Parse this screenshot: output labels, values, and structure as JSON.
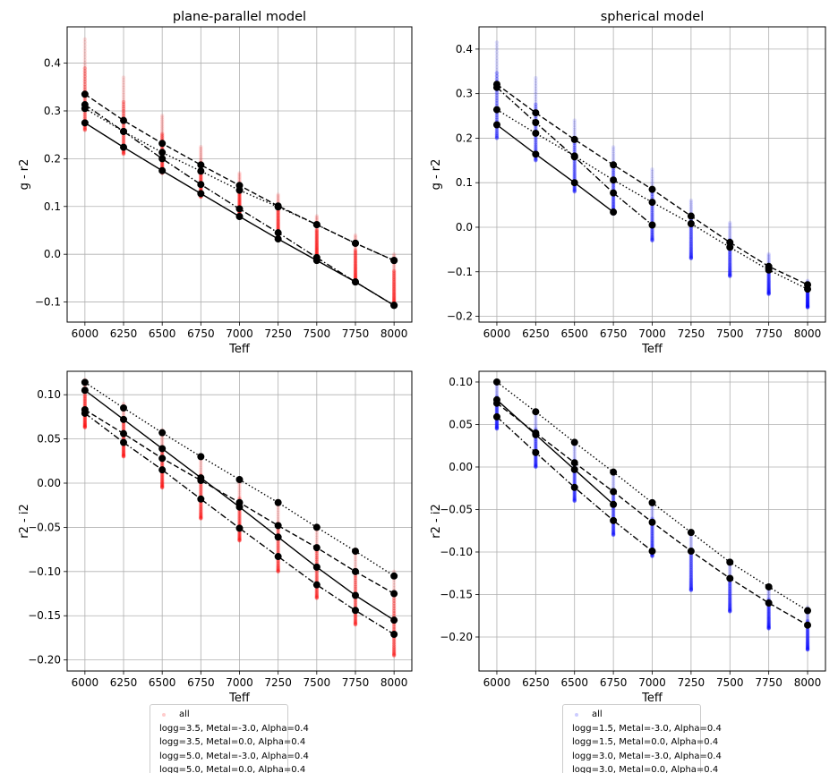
{
  "chart_data": [
    {
      "type": "line",
      "title": "plane-parallel model",
      "xlabel": "Teff",
      "ylabel": "g - r2",
      "xlim": [
        5885,
        8115
      ],
      "ylim": [
        -0.142,
        0.476
      ],
      "xticks": [
        6000,
        6250,
        6500,
        6750,
        7000,
        7250,
        7500,
        7750,
        8000
      ],
      "yticks": [
        -0.1,
        0.0,
        0.1,
        0.2,
        0.3,
        0.4
      ],
      "ytick_decimals": 1,
      "grid": true,
      "scatter_color": "#ff0000",
      "x": [
        6000,
        6250,
        6500,
        6750,
        7000,
        7250,
        7500,
        7750,
        8000
      ],
      "scatter_ranges": [
        [
          0.26,
          0.45
        ],
        [
          0.21,
          0.37
        ],
        [
          0.17,
          0.29
        ],
        [
          0.12,
          0.225
        ],
        [
          0.08,
          0.17
        ],
        [
          0.03,
          0.125
        ],
        [
          -0.01,
          0.08
        ],
        [
          -0.06,
          0.04
        ],
        [
          -0.11,
          0.0
        ]
      ],
      "series": [
        {
          "name": "logg=3.5, Metal=-3.0, Alpha=0.4",
          "style": "solid",
          "values": [
            0.275,
            0.224,
            0.175,
            0.127,
            0.079,
            0.032,
            -0.013,
            -0.058,
            -0.107
          ]
        },
        {
          "name": "logg=3.5, Metal=0.0, Alpha=0.4",
          "style": "dashed",
          "values": [
            0.335,
            0.28,
            0.232,
            0.187,
            0.144,
            0.101,
            0.062,
            0.023,
            -0.013
          ]
        },
        {
          "name": "logg=5.0, Metal=-3.0, Alpha=0.4",
          "style": "dotted",
          "values": [
            0.305,
            0.257,
            0.213,
            0.174,
            0.134,
            0.099,
            0.062,
            0.023,
            -0.013
          ]
        },
        {
          "name": "logg=5.0, Metal=0.0, Alpha=0.4",
          "style": "dashdot",
          "values": [
            0.313,
            0.257,
            0.2,
            0.146,
            0.095,
            0.045,
            -0.007,
            -0.058,
            -0.107
          ]
        }
      ],
      "legend": {
        "all_label": "all",
        "placement": "below"
      }
    },
    {
      "type": "line",
      "title": "spherical model",
      "xlabel": "Teff",
      "ylabel": "g - r2",
      "xlim": [
        5885,
        8115
      ],
      "ylim": [
        -0.213,
        0.45
      ],
      "xticks": [
        6000,
        6250,
        6500,
        6750,
        7000,
        7250,
        7500,
        7750,
        8000
      ],
      "yticks": [
        -0.2,
        -0.1,
        0.0,
        0.1,
        0.2,
        0.3,
        0.4
      ],
      "ytick_decimals": 1,
      "grid": true,
      "scatter_color": "#0000ff",
      "x": [
        6000,
        6250,
        6500,
        6750,
        7000,
        7250,
        7500,
        7750,
        8000
      ],
      "scatter_ranges": [
        [
          0.2,
          0.415
        ],
        [
          0.15,
          0.335
        ],
        [
          0.08,
          0.24
        ],
        [
          0.03,
          0.18
        ],
        [
          -0.03,
          0.13
        ],
        [
          -0.07,
          0.06
        ],
        [
          -0.11,
          0.01
        ],
        [
          -0.15,
          -0.06
        ],
        [
          -0.18,
          -0.12
        ]
      ],
      "series": [
        {
          "name": "logg=1.5, Metal=-3.0, Alpha=0.4",
          "style": "solid",
          "values": [
            0.23,
            0.164,
            0.1,
            0.034,
            null,
            null,
            null,
            null,
            null
          ]
        },
        {
          "name": "logg=1.5, Metal=0.0, Alpha=0.4",
          "style": "dashed",
          "values": [
            0.321,
            0.257,
            0.197,
            0.14,
            0.085,
            0.025,
            -0.034,
            -0.088,
            -0.129
          ]
        },
        {
          "name": "logg=3.0, Metal=-3.0, Alpha=0.4",
          "style": "dotted",
          "values": [
            0.264,
            0.211,
            0.16,
            0.106,
            0.056,
            0.008,
            -0.045,
            -0.096,
            -0.139
          ]
        },
        {
          "name": "logg=3.0, Metal=0.0, Alpha=0.4",
          "style": "dashdot",
          "values": [
            0.314,
            0.235,
            0.158,
            0.077,
            0.005,
            null,
            null,
            null,
            null
          ]
        }
      ],
      "legend": {
        "all_label": "all",
        "placement": "below"
      }
    },
    {
      "type": "line",
      "title": "",
      "xlabel": "Teff",
      "ylabel": "r2 - i2",
      "xlim": [
        5885,
        8115
      ],
      "ylim": [
        -0.2125,
        0.1265
      ],
      "xticks": [
        6000,
        6250,
        6500,
        6750,
        7000,
        7250,
        7500,
        7750,
        8000
      ],
      "yticks": [
        -0.2,
        -0.15,
        -0.1,
        -0.05,
        0.0,
        0.05,
        0.1
      ],
      "ytick_decimals": 2,
      "grid": true,
      "scatter_color": "#ff0000",
      "x": [
        6000,
        6250,
        6500,
        6750,
        7000,
        7250,
        7500,
        7750,
        8000
      ],
      "scatter_ranges": [
        [
          0.063,
          0.117
        ],
        [
          0.03,
          0.09
        ],
        [
          -0.005,
          0.06
        ],
        [
          -0.04,
          0.032
        ],
        [
          -0.065,
          0.005
        ],
        [
          -0.1,
          -0.02
        ],
        [
          -0.13,
          -0.048
        ],
        [
          -0.16,
          -0.075
        ],
        [
          -0.195,
          -0.1
        ]
      ],
      "series": [
        {
          "name": "logg=3.5, Metal=-3.0, Alpha=0.4",
          "style": "solid",
          "values": [
            0.105,
            0.072,
            0.039,
            0.006,
            -0.027,
            -0.061,
            -0.095,
            -0.127,
            -0.155
          ]
        },
        {
          "name": "logg=3.5, Metal=0.0, Alpha=0.4",
          "style": "dashed",
          "values": [
            0.083,
            0.056,
            0.028,
            0.003,
            -0.022,
            -0.048,
            -0.073,
            -0.1,
            -0.125
          ]
        },
        {
          "name": "logg=5.0, Metal=-3.0, Alpha=0.4",
          "style": "dotted",
          "values": [
            0.114,
            0.085,
            0.057,
            0.03,
            0.004,
            -0.022,
            -0.05,
            -0.077,
            -0.105
          ]
        },
        {
          "name": "logg=5.0, Metal=0.0, Alpha=0.4",
          "style": "dashdot",
          "values": [
            0.079,
            0.046,
            0.015,
            -0.018,
            -0.051,
            -0.083,
            -0.115,
            -0.144,
            -0.171
          ]
        }
      ]
    },
    {
      "type": "line",
      "title": "",
      "xlabel": "Teff",
      "ylabel": "r2 - i2",
      "xlim": [
        5885,
        8115
      ],
      "ylim": [
        -0.24,
        0.1126
      ],
      "xticks": [
        6000,
        6250,
        6500,
        6750,
        7000,
        7250,
        7500,
        7750,
        8000
      ],
      "yticks": [
        -0.2,
        -0.15,
        -0.1,
        -0.05,
        0.0,
        0.05,
        0.1
      ],
      "ytick_decimals": 2,
      "grid": true,
      "scatter_color": "#0000ff",
      "x": [
        6000,
        6250,
        6500,
        6750,
        7000,
        7250,
        7500,
        7750,
        8000
      ],
      "scatter_ranges": [
        [
          0.045,
          0.1
        ],
        [
          0.0,
          0.065
        ],
        [
          -0.04,
          0.03
        ],
        [
          -0.08,
          -0.01
        ],
        [
          -0.105,
          -0.04
        ],
        [
          -0.145,
          -0.08
        ],
        [
          -0.17,
          -0.11
        ],
        [
          -0.19,
          -0.14
        ],
        [
          -0.215,
          -0.165
        ]
      ],
      "series": [
        {
          "name": "logg=1.5, Metal=-3.0, Alpha=0.4",
          "style": "solid",
          "values": [
            0.079,
            0.038,
            -0.003,
            -0.044,
            null,
            null,
            null,
            null,
            null
          ]
        },
        {
          "name": "logg=1.5, Metal=0.0, Alpha=0.4",
          "style": "dashed",
          "values": [
            0.075,
            0.04,
            0.005,
            -0.029,
            -0.065,
            -0.099,
            -0.131,
            -0.16,
            -0.186
          ]
        },
        {
          "name": "logg=3.0, Metal=-3.0, Alpha=0.4",
          "style": "dotted",
          "values": [
            0.1,
            0.065,
            0.029,
            -0.006,
            -0.042,
            -0.077,
            -0.112,
            -0.141,
            -0.169
          ]
        },
        {
          "name": "logg=3.0, Metal=0.0, Alpha=0.4",
          "style": "dashdot",
          "values": [
            0.059,
            0.017,
            -0.024,
            -0.063,
            -0.099,
            null,
            null,
            null,
            null
          ]
        }
      ]
    }
  ]
}
